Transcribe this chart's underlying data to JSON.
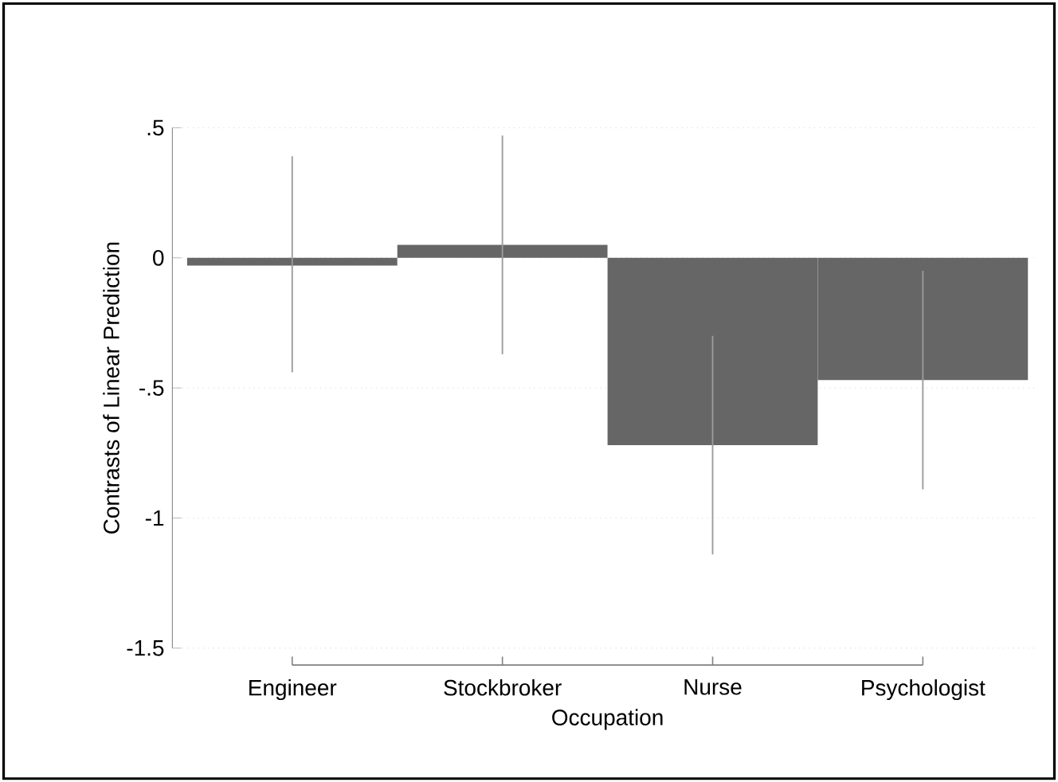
{
  "chart_data": {
    "type": "bar",
    "xlabel": "Occupation",
    "ylabel": "Contrasts of Linear Prediction",
    "categories": [
      "Engineer",
      "Stockbroker",
      "Nurse",
      "Psychologist"
    ],
    "values": [
      -0.03,
      0.05,
      -0.72,
      -0.47
    ],
    "errors": [
      [
        -0.44,
        0.39
      ],
      [
        -0.37,
        0.47
      ],
      [
        -1.14,
        -0.3
      ],
      [
        -0.89,
        -0.05
      ]
    ],
    "color": "#666666",
    "ylim": [
      -1.5,
      0.5
    ],
    "yticks": [
      {
        "value": -1.5,
        "label": "-1.5"
      },
      {
        "value": -1,
        "label": "-1"
      },
      {
        "value": -0.5,
        "label": "-.5"
      },
      0,
      {
        "value": 0.5,
        "label": ".5"
      }
    ],
    "grid": true
  }
}
